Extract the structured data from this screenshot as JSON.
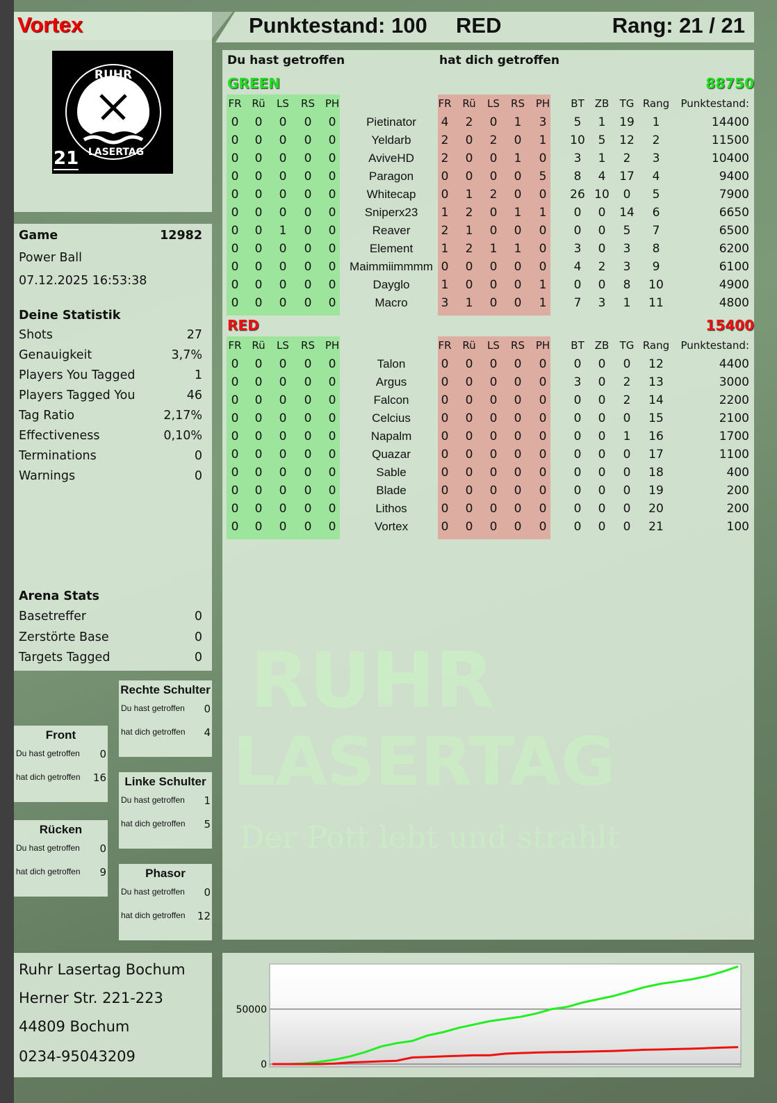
{
  "player": {
    "name": "Vortex",
    "rank_badge": "21",
    "logo_text": [
      "RUHR",
      "LASERTAG"
    ]
  },
  "header": {
    "score_label": "Punktestand: 100",
    "team": "RED",
    "rank_label": "Rang: 21 / 21"
  },
  "game": {
    "label": "Game",
    "id": "12982",
    "mode": "Power Ball",
    "datetime": "07.12.2025 16:53:38"
  },
  "stats": {
    "title": "Deine Statistik",
    "rows": [
      {
        "label": "Shots",
        "value": "27"
      },
      {
        "label": "Genauigkeit",
        "value": "3,7%"
      },
      {
        "label": "Players You Tagged",
        "value": "1"
      },
      {
        "label": "Players Tagged You",
        "value": "46"
      },
      {
        "label": "Tag Ratio",
        "value": "2,17%"
      },
      {
        "label": "Effectiveness",
        "value": "0,10%"
      },
      {
        "label": "Terminations",
        "value": "0"
      },
      {
        "label": "Warnings",
        "value": "0"
      }
    ]
  },
  "arena": {
    "title": "Arena Stats",
    "rows": [
      {
        "label": "Basetreffer",
        "value": "0"
      },
      {
        "label": "Zerstörte Base",
        "value": "0"
      },
      {
        "label": "Targets Tagged",
        "value": "0"
      }
    ]
  },
  "zones": {
    "hit_label": "Du hast getroffen",
    "got_label": "hat dich getroffen",
    "rechte_schulter": {
      "title": "Rechte Schulter",
      "hit": "0",
      "got": "4"
    },
    "front": {
      "title": "Front",
      "hit": "0",
      "got": "16"
    },
    "linke_schulter": {
      "title": "Linke Schulter",
      "hit": "1",
      "got": "5"
    },
    "ruecken": {
      "title": "Rücken",
      "hit": "0",
      "got": "9"
    },
    "phasor": {
      "title": "Phasor",
      "hit": "0",
      "got": "12"
    }
  },
  "address": {
    "name": "Ruhr Lasertag Bochum",
    "street": "Herner Str. 221-223",
    "city": "44809 Bochum",
    "phone": "0234-95043209"
  },
  "table": {
    "hit_heading": "Du hast getroffen",
    "got_heading": "hat dich getroffen",
    "zone_cols": [
      "FR",
      "Rü",
      "LS",
      "RS",
      "PH"
    ],
    "stat_cols": [
      "BT",
      "ZB",
      "TG",
      "Rang",
      "Punktestand:"
    ],
    "teams": [
      {
        "name": "GREEN",
        "total": "88750",
        "color": "#22dd22",
        "players": [
          {
            "name": "Pietinator",
            "hit": [
              "0",
              "0",
              "0",
              "0",
              "0"
            ],
            "got": [
              "4",
              "2",
              "0",
              "1",
              "3"
            ],
            "bt": "5",
            "zb": "1",
            "tg": "19",
            "rang": "1",
            "score": "14400"
          },
          {
            "name": "Yeldarb",
            "hit": [
              "0",
              "0",
              "0",
              "0",
              "0"
            ],
            "got": [
              "2",
              "0",
              "2",
              "0",
              "1"
            ],
            "bt": "10",
            "zb": "5",
            "tg": "12",
            "rang": "2",
            "score": "11500"
          },
          {
            "name": "AviveHD",
            "hit": [
              "0",
              "0",
              "0",
              "0",
              "0"
            ],
            "got": [
              "2",
              "0",
              "0",
              "1",
              "0"
            ],
            "bt": "3",
            "zb": "1",
            "tg": "2",
            "rang": "3",
            "score": "10400"
          },
          {
            "name": "Paragon",
            "hit": [
              "0",
              "0",
              "0",
              "0",
              "0"
            ],
            "got": [
              "0",
              "0",
              "0",
              "0",
              "5"
            ],
            "bt": "8",
            "zb": "4",
            "tg": "17",
            "rang": "4",
            "score": "9400"
          },
          {
            "name": "Whitecap",
            "hit": [
              "0",
              "0",
              "0",
              "0",
              "0"
            ],
            "got": [
              "0",
              "1",
              "2",
              "0",
              "0"
            ],
            "bt": "26",
            "zb": "10",
            "tg": "0",
            "rang": "5",
            "score": "7900"
          },
          {
            "name": "Sniperx23",
            "hit": [
              "0",
              "0",
              "0",
              "0",
              "0"
            ],
            "got": [
              "1",
              "2",
              "0",
              "1",
              "1"
            ],
            "bt": "0",
            "zb": "0",
            "tg": "14",
            "rang": "6",
            "score": "6650"
          },
          {
            "name": "Reaver",
            "hit": [
              "0",
              "0",
              "1",
              "0",
              "0"
            ],
            "got": [
              "2",
              "1",
              "0",
              "0",
              "0"
            ],
            "bt": "0",
            "zb": "0",
            "tg": "5",
            "rang": "7",
            "score": "6500"
          },
          {
            "name": "Element",
            "hit": [
              "0",
              "0",
              "0",
              "0",
              "0"
            ],
            "got": [
              "1",
              "2",
              "1",
              "1",
              "0"
            ],
            "bt": "3",
            "zb": "0",
            "tg": "3",
            "rang": "8",
            "score": "6200"
          },
          {
            "name": "Maimmiimmmm",
            "hit": [
              "0",
              "0",
              "0",
              "0",
              "0"
            ],
            "got": [
              "0",
              "0",
              "0",
              "0",
              "0"
            ],
            "bt": "4",
            "zb": "2",
            "tg": "3",
            "rang": "9",
            "score": "6100"
          },
          {
            "name": "Dayglo",
            "hit": [
              "0",
              "0",
              "0",
              "0",
              "0"
            ],
            "got": [
              "1",
              "0",
              "0",
              "0",
              "1"
            ],
            "bt": "0",
            "zb": "0",
            "tg": "8",
            "rang": "10",
            "score": "4900"
          },
          {
            "name": "Macro",
            "hit": [
              "0",
              "0",
              "0",
              "0",
              "0"
            ],
            "got": [
              "3",
              "1",
              "0",
              "0",
              "1"
            ],
            "bt": "7",
            "zb": "3",
            "tg": "1",
            "rang": "11",
            "score": "4800"
          }
        ]
      },
      {
        "name": "RED",
        "total": "15400",
        "color": "#ee1111",
        "players": [
          {
            "name": "Talon",
            "hit": [
              "0",
              "0",
              "0",
              "0",
              "0"
            ],
            "got": [
              "0",
              "0",
              "0",
              "0",
              "0"
            ],
            "bt": "0",
            "zb": "0",
            "tg": "0",
            "rang": "12",
            "score": "4400"
          },
          {
            "name": "Argus",
            "hit": [
              "0",
              "0",
              "0",
              "0",
              "0"
            ],
            "got": [
              "0",
              "0",
              "0",
              "0",
              "0"
            ],
            "bt": "3",
            "zb": "0",
            "tg": "2",
            "rang": "13",
            "score": "3000"
          },
          {
            "name": "Falcon",
            "hit": [
              "0",
              "0",
              "0",
              "0",
              "0"
            ],
            "got": [
              "0",
              "0",
              "0",
              "0",
              "0"
            ],
            "bt": "0",
            "zb": "0",
            "tg": "2",
            "rang": "14",
            "score": "2200"
          },
          {
            "name": "Celcius",
            "hit": [
              "0",
              "0",
              "0",
              "0",
              "0"
            ],
            "got": [
              "0",
              "0",
              "0",
              "0",
              "0"
            ],
            "bt": "0",
            "zb": "0",
            "tg": "0",
            "rang": "15",
            "score": "2100"
          },
          {
            "name": "Napalm",
            "hit": [
              "0",
              "0",
              "0",
              "0",
              "0"
            ],
            "got": [
              "0",
              "0",
              "0",
              "0",
              "0"
            ],
            "bt": "0",
            "zb": "0",
            "tg": "1",
            "rang": "16",
            "score": "1700"
          },
          {
            "name": "Quazar",
            "hit": [
              "0",
              "0",
              "0",
              "0",
              "0"
            ],
            "got": [
              "0",
              "0",
              "0",
              "0",
              "0"
            ],
            "bt": "0",
            "zb": "0",
            "tg": "0",
            "rang": "17",
            "score": "1100"
          },
          {
            "name": "Sable",
            "hit": [
              "0",
              "0",
              "0",
              "0",
              "0"
            ],
            "got": [
              "0",
              "0",
              "0",
              "0",
              "0"
            ],
            "bt": "0",
            "zb": "0",
            "tg": "0",
            "rang": "18",
            "score": "400"
          },
          {
            "name": "Blade",
            "hit": [
              "0",
              "0",
              "0",
              "0",
              "0"
            ],
            "got": [
              "0",
              "0",
              "0",
              "0",
              "0"
            ],
            "bt": "0",
            "zb": "0",
            "tg": "0",
            "rang": "19",
            "score": "200"
          },
          {
            "name": "Lithos",
            "hit": [
              "0",
              "0",
              "0",
              "0",
              "0"
            ],
            "got": [
              "0",
              "0",
              "0",
              "0",
              "0"
            ],
            "bt": "0",
            "zb": "0",
            "tg": "0",
            "rang": "20",
            "score": "200"
          },
          {
            "name": "Vortex",
            "hit": [
              "0",
              "0",
              "0",
              "0",
              "0"
            ],
            "got": [
              "0",
              "0",
              "0",
              "0",
              "0"
            ],
            "bt": "0",
            "zb": "0",
            "tg": "0",
            "rang": "21",
            "score": "100"
          }
        ]
      }
    ]
  },
  "watermark": {
    "line1": "RUHR",
    "line2": "LASERTAG",
    "slogan": "Der Pott lebt und strahlt"
  },
  "chart_data": {
    "type": "line",
    "title": "",
    "xlabel": "",
    "ylabel": "",
    "ylim": [
      0,
      91000
    ],
    "yticks": [
      0,
      50000
    ],
    "ytick_labels": [
      "0",
      "50000"
    ],
    "grid": true,
    "x": [
      0,
      1,
      2,
      3,
      4,
      5,
      6,
      7,
      8,
      9,
      10,
      11,
      12,
      13,
      14,
      15,
      16,
      17,
      18,
      19,
      20,
      21,
      22,
      23,
      24,
      25,
      26,
      27,
      28,
      29,
      30
    ],
    "series": [
      {
        "color": "#22ee22",
        "values": [
          0,
          0,
          500,
          2000,
          4000,
          7000,
          11000,
          16000,
          19000,
          21000,
          26000,
          29000,
          33000,
          36000,
          39000,
          41000,
          43000,
          46000,
          50000,
          52000,
          56000,
          59000,
          62000,
          66000,
          70000,
          73000,
          75000,
          77000,
          80000,
          84000,
          88750
        ]
      },
      {
        "color": "#ee1111",
        "values": [
          0,
          0,
          0,
          0,
          500,
          1500,
          2000,
          2500,
          3000,
          6000,
          6500,
          7000,
          7500,
          8000,
          8000,
          9500,
          10000,
          10500,
          10800,
          11000,
          11300,
          11600,
          11900,
          12500,
          13000,
          13300,
          13700,
          14000,
          14500,
          15000,
          15400
        ]
      }
    ]
  }
}
